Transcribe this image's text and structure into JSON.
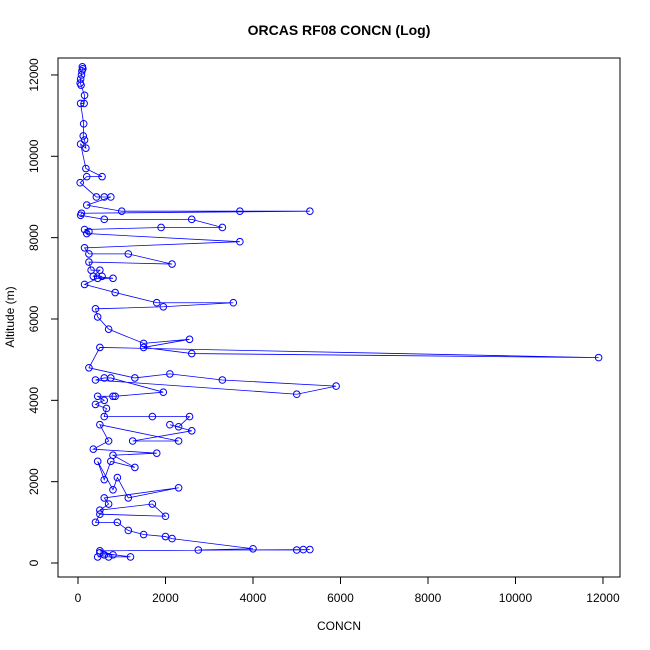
{
  "chart_data": {
    "type": "line",
    "title": "ORCAS RF08 CONCN (Log)",
    "x_label": "CONCN",
    "y_label": "Altitude (m)",
    "color": "#0000ff",
    "markers": true,
    "xlim": [
      -457,
      12389
    ],
    "ylim": [
      -344,
      12417
    ],
    "xticks": [
      0,
      2000,
      4000,
      6000,
      8000,
      10000,
      12000
    ],
    "yticks": [
      0,
      2000,
      4000,
      6000,
      8000,
      10000,
      12000
    ],
    "x": [
      100,
      110,
      90,
      80,
      60,
      50,
      70,
      150,
      140,
      60,
      130,
      120,
      150,
      180,
      60,
      180,
      550,
      200,
      50,
      420,
      600,
      750,
      200,
      1000,
      3700,
      5300,
      80,
      60,
      600,
      2600,
      3300,
      1900,
      150,
      250,
      200,
      3700,
      150,
      250,
      1150,
      2150,
      250,
      300,
      500,
      350,
      800,
      450,
      550,
      150,
      850,
      1800,
      3550,
      1950,
      400,
      450,
      700,
      1500,
      2550,
      1500,
      2600,
      11900,
      500,
      250,
      1300,
      2100,
      3300,
      5900,
      5000,
      400,
      600,
      750,
      1950,
      850,
      800,
      450,
      600,
      400,
      650,
      600,
      1700,
      2550,
      2300,
      2100,
      2600,
      1250,
      2300,
      500,
      700,
      350,
      1800,
      800,
      1300,
      750,
      600,
      450,
      800,
      900,
      1150,
      2300,
      600,
      700,
      500,
      1700,
      2000,
      500,
      400,
      900,
      1150,
      1500,
      2000,
      2150,
      4000,
      2750,
      5000,
      5300,
      5150,
      500,
      800,
      600,
      450,
      700,
      1200,
      500
    ],
    "y": [
      12200,
      12150,
      12100,
      12000,
      11900,
      11800,
      11750,
      11500,
      11300,
      11300,
      10800,
      10500,
      10400,
      10200,
      10300,
      9700,
      9500,
      9500,
      9350,
      9000,
      9000,
      9000,
      8800,
      8650,
      8650,
      8650,
      8600,
      8550,
      8450,
      8450,
      8250,
      8250,
      8200,
      8150,
      8100,
      7900,
      7750,
      7600,
      7600,
      7350,
      7400,
      7200,
      7200,
      7050,
      7000,
      7000,
      7050,
      6850,
      6650,
      6400,
      6400,
      6300,
      6250,
      6050,
      5750,
      5400,
      5500,
      5300,
      5150,
      5050,
      5300,
      4800,
      4550,
      4650,
      4500,
      4350,
      4150,
      4500,
      4550,
      4550,
      4200,
      4100,
      4100,
      4100,
      4000,
      3900,
      3800,
      3600,
      3600,
      3600,
      3350,
      3400,
      3250,
      3000,
      3000,
      3400,
      3000,
      2800,
      2700,
      2650,
      2350,
      2500,
      2050,
      2500,
      1800,
      2100,
      1600,
      1850,
      1600,
      1450,
      1300,
      1450,
      1150,
      1200,
      1000,
      1000,
      800,
      700,
      650,
      600,
      350,
      320,
      320,
      330,
      330,
      300,
      200,
      200,
      150,
      150,
      150,
      250
    ]
  }
}
